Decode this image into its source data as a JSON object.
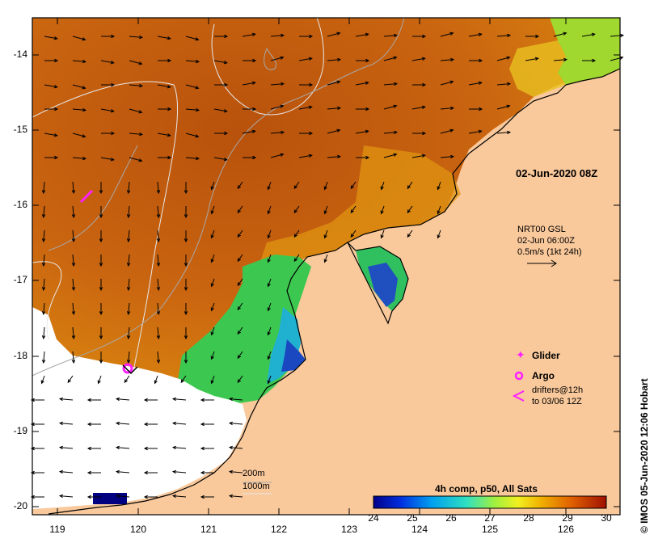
{
  "map": {
    "timestamp_label": "02-Jun-2020 08Z",
    "current_info": {
      "product": "NRT00 GSL",
      "datetime": "02-Jun 06:00Z",
      "scale": "0.5m/s (1kt 24h)"
    },
    "legend": {
      "glider": "Glider",
      "argo": "Argo",
      "drifters_line1": "drifters@12h",
      "drifters_line2": "to 03/06 12Z"
    },
    "depth_contours": {
      "contour_200": "200m",
      "contour_1000": "1000m"
    },
    "colorbar": {
      "title": "4h comp, p50, All Sats",
      "ticks": [
        "24",
        "25",
        "26",
        "27",
        "28",
        "29",
        "30"
      ]
    },
    "y_ticks": [
      "-14",
      "-15",
      "-16",
      "-17",
      "-18",
      "-19",
      "-20"
    ],
    "x_ticks": [
      "119",
      "120",
      "121",
      "122",
      "123",
      "124",
      "125",
      "126"
    ],
    "credit": "© IMOS 05-Jun-2020 12:06 Hobart",
    "colors": {
      "land": "#f9c89b",
      "sea_warm": "#c55c0c",
      "sea_mid": "#e09010",
      "sea_cool": "#2050c0",
      "cloud": "#ffffff",
      "platform_marker": "#ff20ff"
    }
  }
}
